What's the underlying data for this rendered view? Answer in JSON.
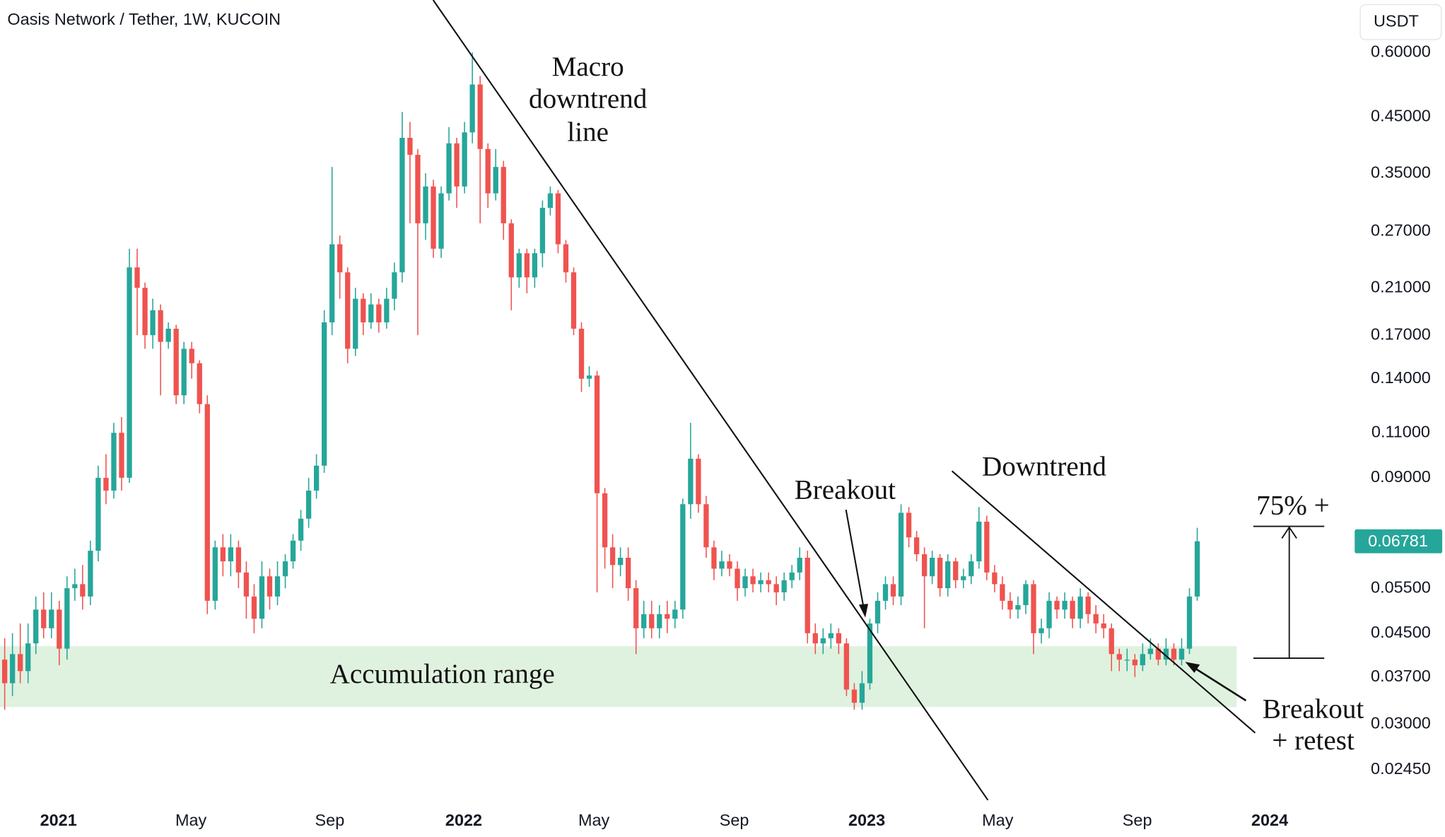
{
  "chart_data": {
    "type": "candlestick",
    "title": "Oasis Network / Tether, 1W, KUCOIN",
    "currency": "USDT",
    "up_color": "#26a69a",
    "down_color": "#ef5350",
    "log_scale": true,
    "last_price": 0.06781,
    "open": [
      0.04,
      0.036,
      0.041,
      0.038,
      0.043,
      0.05,
      0.046,
      0.05,
      0.042,
      0.055,
      0.056,
      0.053,
      0.065,
      0.09,
      0.085,
      0.11,
      0.09,
      0.23,
      0.21,
      0.17,
      0.19,
      0.165,
      0.175,
      0.13,
      0.16,
      0.15,
      0.125,
      0.052,
      0.066,
      0.062,
      0.066,
      0.059,
      0.053,
      0.048,
      0.058,
      0.053,
      0.058,
      0.062,
      0.068,
      0.075,
      0.085,
      0.095,
      0.18,
      0.255,
      0.225,
      0.16,
      0.2,
      0.18,
      0.195,
      0.18,
      0.2,
      0.225,
      0.41,
      0.38,
      0.28,
      0.33,
      0.25,
      0.32,
      0.4,
      0.33,
      0.42,
      0.52,
      0.39,
      0.32,
      0.36,
      0.28,
      0.22,
      0.245,
      0.22,
      0.245,
      0.3,
      0.32,
      0.255,
      0.225,
      0.175,
      0.14,
      0.142,
      0.084,
      0.066,
      0.061,
      0.063,
      0.055,
      0.046,
      0.049,
      0.046,
      0.049,
      0.048,
      0.05,
      0.08,
      0.098,
      0.08,
      0.066,
      0.06,
      0.062,
      0.06,
      0.055,
      0.058,
      0.056,
      0.057,
      0.056,
      0.054,
      0.057,
      0.059,
      0.063,
      0.045,
      0.043,
      0.044,
      0.045,
      0.043,
      0.035,
      0.033,
      0.036,
      0.047,
      0.052,
      0.056,
      0.053,
      0.077,
      0.069,
      0.064,
      0.058,
      0.063,
      0.055,
      0.062,
      0.057,
      0.058,
      0.062,
      0.074,
      0.059,
      0.056,
      0.052,
      0.05,
      0.051,
      0.056,
      0.045,
      0.046,
      0.052,
      0.05,
      0.052,
      0.048,
      0.053,
      0.049,
      0.047,
      0.046,
      0.041,
      0.04,
      0.04,
      0.039,
      0.041,
      0.042,
      0.04,
      0.042,
      0.04,
      0.042,
      0.053
    ],
    "high": [
      0.044,
      0.045,
      0.047,
      0.047,
      0.053,
      0.054,
      0.054,
      0.052,
      0.058,
      0.06,
      0.061,
      0.068,
      0.095,
      0.1,
      0.115,
      0.118,
      0.25,
      0.25,
      0.215,
      0.2,
      0.195,
      0.18,
      0.178,
      0.165,
      0.165,
      0.152,
      0.13,
      0.068,
      0.07,
      0.07,
      0.068,
      0.062,
      0.056,
      0.062,
      0.06,
      0.062,
      0.064,
      0.07,
      0.078,
      0.09,
      0.1,
      0.19,
      0.36,
      0.265,
      0.23,
      0.21,
      0.205,
      0.205,
      0.2,
      0.21,
      0.235,
      0.46,
      0.44,
      0.39,
      0.35,
      0.34,
      0.33,
      0.43,
      0.41,
      0.44,
      0.6,
      0.54,
      0.4,
      0.39,
      0.37,
      0.285,
      0.25,
      0.25,
      0.25,
      0.31,
      0.33,
      0.325,
      0.26,
      0.23,
      0.18,
      0.148,
      0.145,
      0.086,
      0.07,
      0.066,
      0.066,
      0.057,
      0.052,
      0.052,
      0.051,
      0.052,
      0.052,
      0.082,
      0.115,
      0.1,
      0.083,
      0.068,
      0.065,
      0.064,
      0.062,
      0.06,
      0.06,
      0.059,
      0.059,
      0.058,
      0.059,
      0.061,
      0.066,
      0.065,
      0.047,
      0.046,
      0.047,
      0.046,
      0.044,
      0.036,
      0.038,
      0.048,
      0.054,
      0.058,
      0.058,
      0.08,
      0.079,
      0.071,
      0.066,
      0.065,
      0.064,
      0.064,
      0.063,
      0.06,
      0.064,
      0.079,
      0.076,
      0.061,
      0.058,
      0.054,
      0.053,
      0.057,
      0.057,
      0.048,
      0.054,
      0.053,
      0.054,
      0.053,
      0.055,
      0.054,
      0.051,
      0.049,
      0.047,
      0.042,
      0.042,
      0.041,
      0.043,
      0.044,
      0.043,
      0.044,
      0.043,
      0.044,
      0.055,
      0.072
    ],
    "low": [
      0.032,
      0.034,
      0.036,
      0.036,
      0.041,
      0.044,
      0.044,
      0.039,
      0.04,
      0.052,
      0.05,
      0.051,
      0.062,
      0.08,
      0.082,
      0.085,
      0.088,
      0.17,
      0.16,
      0.16,
      0.13,
      0.16,
      0.125,
      0.125,
      0.14,
      0.12,
      0.049,
      0.05,
      0.058,
      0.058,
      0.055,
      0.048,
      0.045,
      0.046,
      0.05,
      0.051,
      0.055,
      0.06,
      0.065,
      0.072,
      0.082,
      0.092,
      0.17,
      0.2,
      0.15,
      0.155,
      0.17,
      0.175,
      0.172,
      0.175,
      0.19,
      0.215,
      0.28,
      0.17,
      0.26,
      0.24,
      0.24,
      0.31,
      0.3,
      0.32,
      0.4,
      0.28,
      0.3,
      0.31,
      0.26,
      0.19,
      0.21,
      0.205,
      0.21,
      0.23,
      0.29,
      0.245,
      0.215,
      0.17,
      0.132,
      0.135,
      0.054,
      0.06,
      0.055,
      0.058,
      0.052,
      0.041,
      0.044,
      0.044,
      0.044,
      0.045,
      0.046,
      0.048,
      0.075,
      0.077,
      0.063,
      0.057,
      0.058,
      0.058,
      0.052,
      0.053,
      0.054,
      0.054,
      0.054,
      0.051,
      0.052,
      0.055,
      0.057,
      0.043,
      0.041,
      0.041,
      0.042,
      0.041,
      0.034,
      0.032,
      0.032,
      0.035,
      0.045,
      0.05,
      0.051,
      0.051,
      0.066,
      0.062,
      0.046,
      0.056,
      0.053,
      0.053,
      0.055,
      0.055,
      0.056,
      0.06,
      0.057,
      0.054,
      0.05,
      0.048,
      0.048,
      0.049,
      0.041,
      0.043,
      0.044,
      0.048,
      0.048,
      0.046,
      0.046,
      0.047,
      0.045,
      0.044,
      0.038,
      0.038,
      0.038,
      0.037,
      0.038,
      0.04,
      0.039,
      0.039,
      0.039,
      0.039,
      0.041,
      0.052
    ],
    "close": [
      0.036,
      0.041,
      0.038,
      0.043,
      0.05,
      0.046,
      0.05,
      0.042,
      0.055,
      0.056,
      0.053,
      0.065,
      0.09,
      0.085,
      0.11,
      0.09,
      0.23,
      0.21,
      0.17,
      0.19,
      0.165,
      0.175,
      0.13,
      0.16,
      0.15,
      0.125,
      0.052,
      0.066,
      0.062,
      0.066,
      0.059,
      0.053,
      0.048,
      0.058,
      0.053,
      0.058,
      0.062,
      0.068,
      0.075,
      0.085,
      0.095,
      0.18,
      0.255,
      0.225,
      0.16,
      0.2,
      0.18,
      0.195,
      0.18,
      0.2,
      0.225,
      0.41,
      0.38,
      0.28,
      0.33,
      0.25,
      0.32,
      0.4,
      0.33,
      0.42,
      0.52,
      0.39,
      0.32,
      0.36,
      0.28,
      0.22,
      0.245,
      0.22,
      0.245,
      0.3,
      0.32,
      0.255,
      0.225,
      0.175,
      0.14,
      0.142,
      0.084,
      0.066,
      0.061,
      0.063,
      0.055,
      0.046,
      0.049,
      0.046,
      0.049,
      0.048,
      0.05,
      0.08,
      0.098,
      0.08,
      0.066,
      0.06,
      0.062,
      0.06,
      0.055,
      0.058,
      0.056,
      0.057,
      0.056,
      0.054,
      0.057,
      0.059,
      0.063,
      0.045,
      0.043,
      0.044,
      0.045,
      0.043,
      0.035,
      0.033,
      0.036,
      0.047,
      0.052,
      0.056,
      0.053,
      0.077,
      0.069,
      0.064,
      0.058,
      0.063,
      0.055,
      0.062,
      0.057,
      0.058,
      0.062,
      0.074,
      0.059,
      0.056,
      0.052,
      0.05,
      0.051,
      0.056,
      0.045,
      0.046,
      0.052,
      0.05,
      0.052,
      0.048,
      0.053,
      0.049,
      0.047,
      0.046,
      0.041,
      0.04,
      0.04,
      0.039,
      0.041,
      0.042,
      0.04,
      0.042,
      0.04,
      0.042,
      0.053,
      0.06781
    ],
    "xlim": [
      -0.6,
      173.2
    ],
    "xticks": [
      {
        "value": 6.9,
        "label": "2021"
      },
      {
        "value": 23.9,
        "label": "May"
      },
      {
        "value": 41.7,
        "label": "Sep"
      },
      {
        "value": 58.9,
        "label": "2022"
      },
      {
        "value": 75.6,
        "label": "May"
      },
      {
        "value": 93.6,
        "label": "Sep"
      },
      {
        "value": 110.6,
        "label": "2023"
      },
      {
        "value": 127.4,
        "label": "May"
      },
      {
        "value": 145.3,
        "label": "Sep"
      },
      {
        "value": 162.3,
        "label": "2024"
      }
    ],
    "ylim": [
      0.0212,
      0.758
    ],
    "yticks": [
      {
        "value": 0.6,
        "label": "0.60000"
      },
      {
        "value": 0.45,
        "label": "0.45000"
      },
      {
        "value": 0.35,
        "label": "0.35000"
      },
      {
        "value": 0.27,
        "label": "0.27000"
      },
      {
        "value": 0.21,
        "label": "0.21000"
      },
      {
        "value": 0.17,
        "label": "0.17000"
      },
      {
        "value": 0.14,
        "label": "0.14000"
      },
      {
        "value": 0.11,
        "label": "0.11000"
      },
      {
        "value": 0.09,
        "label": "0.09000"
      },
      {
        "value": 0.055,
        "label": "0.05500"
      },
      {
        "value": 0.045,
        "label": "0.04500"
      },
      {
        "value": 0.037,
        "label": "0.03700"
      },
      {
        "value": 0.03,
        "label": "0.03000"
      },
      {
        "value": 0.0245,
        "label": "0.02450"
      }
    ],
    "annotations": {
      "macro": [
        "Macro",
        "downtrend",
        "line"
      ],
      "downtrend": "Downtrend",
      "breakout": "Breakout",
      "retest": [
        "Breakout",
        "+ retest"
      ],
      "accumulation": "Accumulation range",
      "gain": "75% +"
    }
  }
}
